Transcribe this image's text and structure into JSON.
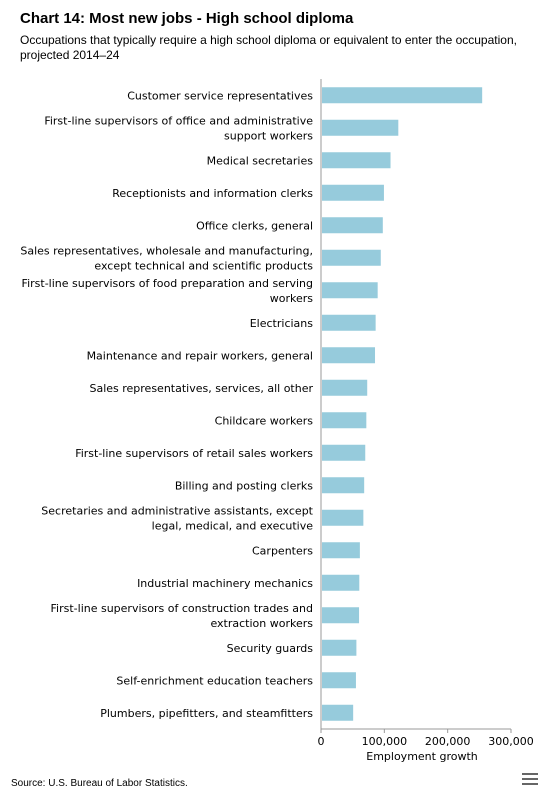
{
  "chart_data": {
    "type": "bar",
    "orientation": "horizontal",
    "title": "Chart 14: Most new jobs - High school diploma",
    "subtitle": "Occupations that typically require a high school diploma or equivalent to enter the occupation, projected 2014–24",
    "xlabel": "Employment growth",
    "ylabel": "",
    "xlim": [
      0,
      300000
    ],
    "xticks": [
      0,
      100000,
      200000,
      300000
    ],
    "xtick_labels": [
      "0",
      "100,000",
      "200,000",
      "300,000"
    ],
    "grid": false,
    "bar_color": "#96cbdc",
    "categories": [
      [
        "Customer service representatives"
      ],
      [
        "First-line supervisors of office and administrative",
        "support workers"
      ],
      [
        "Medical secretaries"
      ],
      [
        "Receptionists and information clerks"
      ],
      [
        "Office clerks, general"
      ],
      [
        "Sales representatives, wholesale and manufacturing,",
        "except technical and scientific products"
      ],
      [
        "First-line supervisors of food preparation and serving",
        "workers"
      ],
      [
        "Electricians"
      ],
      [
        "Maintenance and repair workers, general"
      ],
      [
        "Sales representatives, services, all other"
      ],
      [
        "Childcare workers"
      ],
      [
        "First-line supervisors of retail sales workers"
      ],
      [
        "Billing and posting clerks"
      ],
      [
        "Secretaries and administrative assistants, except",
        "legal, medical, and executive"
      ],
      [
        "Carpenters"
      ],
      [
        "Industrial machinery mechanics"
      ],
      [
        "First-line supervisors of construction trades and",
        "extraction workers"
      ],
      [
        "Security guards"
      ],
      [
        "Self-enrichment education teachers"
      ],
      [
        "Plumbers, pipefitters, and steamfitters"
      ]
    ],
    "values": [
      252900,
      120500,
      108200,
      97800,
      96000,
      92800,
      87900,
      84700,
      83700,
      71400,
      70000,
      68300,
      66600,
      65300,
      59800,
      58900,
      58500,
      54300,
      53600,
      49200
    ]
  },
  "source": "Source: U.S. Bureau of Labor Statistics.",
  "icons": {
    "menu": "menu-icon"
  }
}
